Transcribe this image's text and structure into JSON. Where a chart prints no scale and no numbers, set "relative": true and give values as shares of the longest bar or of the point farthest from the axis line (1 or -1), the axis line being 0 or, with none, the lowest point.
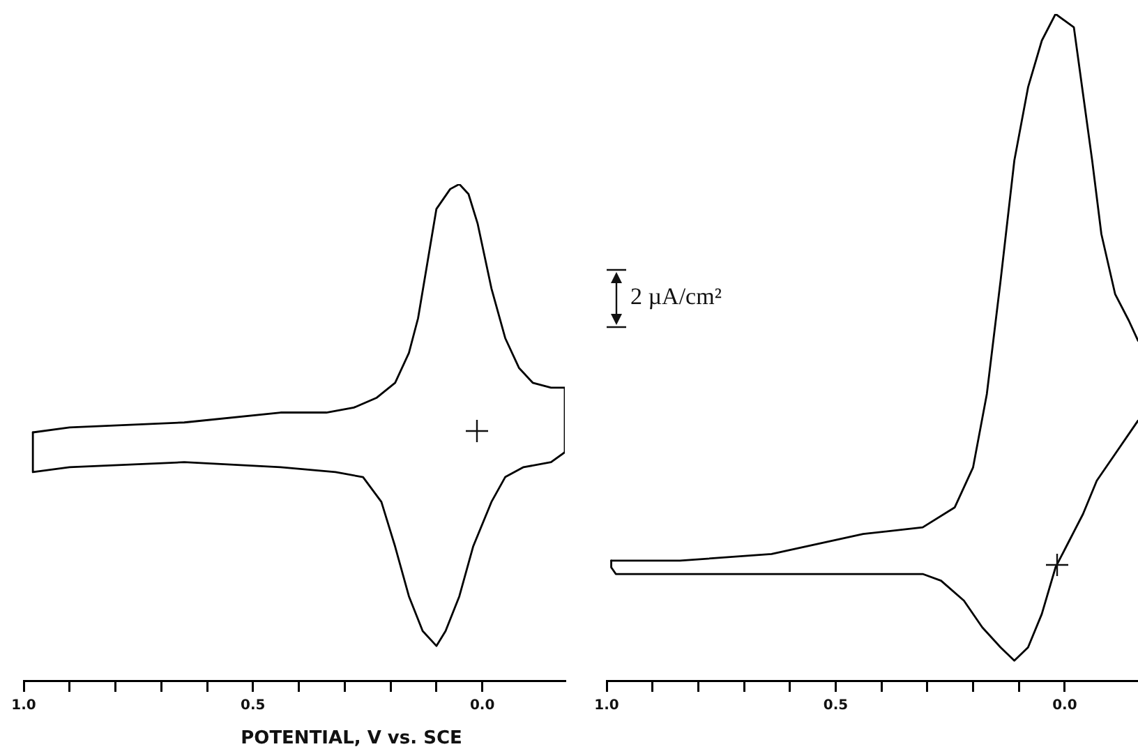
{
  "chart_data": [
    {
      "type": "line",
      "xlabel": "POTENTIAL, V vs. SCE",
      "relative": true,
      "xlim": [
        1.0,
        -0.18
      ],
      "xticks": [
        {
          "value": 1,
          "label": "1.0"
        },
        {
          "value": 0.9,
          "label": null
        },
        {
          "value": 0.8,
          "label": null
        },
        {
          "value": 0.7,
          "label": null
        },
        {
          "value": 0.6,
          "label": null
        },
        0.5,
        {
          "value": 0.4,
          "label": null
        },
        {
          "value": 0.3,
          "label": null
        },
        {
          "value": 0.2,
          "label": null
        },
        {
          "value": 0.1,
          "label": null
        },
        {
          "value": 0,
          "label": "0.0"
        }
      ],
      "series": [
        {
          "color": "#000000",
          "x": [
            0.98,
            0.9,
            0.65,
            0.44,
            0.34,
            0.28,
            0.23,
            0.19,
            0.16,
            0.14,
            0.12,
            0.1,
            0.07,
            0.05,
            0.03,
            0.01,
            -0.02,
            -0.05,
            -0.08,
            -0.11,
            -0.15,
            -0.18,
            -0.18
          ],
          "values": [
            0.5,
            0.51,
            0.52,
            0.54,
            0.54,
            0.55,
            0.57,
            0.6,
            0.66,
            0.73,
            0.84,
            0.95,
            0.99,
            1.0,
            0.98,
            0.92,
            0.79,
            0.69,
            0.63,
            0.6,
            0.59,
            0.59,
            0.46
          ]
        },
        {
          "color": "#000000",
          "x": [
            -0.18,
            -0.15,
            -0.09,
            -0.05,
            -0.02,
            0.02,
            0.05,
            0.08,
            0.1,
            0.13,
            0.16,
            0.19,
            0.22,
            0.26,
            0.32,
            0.44,
            0.65,
            0.9,
            0.98,
            0.98
          ],
          "values": [
            0.46,
            0.44,
            0.43,
            0.41,
            0.36,
            0.27,
            0.17,
            0.1,
            0.07,
            0.1,
            0.17,
            0.27,
            0.36,
            0.41,
            0.42,
            0.43,
            0.44,
            0.43,
            0.42,
            0.5
          ]
        }
      ],
      "grid": false,
      "legend": false,
      "tick_labels": "x",
      "marker": "none",
      "line_style": "solid"
    },
    {
      "type": "line",
      "relative": true,
      "xlim": [
        1.0,
        -0.16
      ],
      "xticks": [
        {
          "value": 1,
          "label": "1.0"
        },
        {
          "value": 0.9,
          "label": null
        },
        {
          "value": 0.8,
          "label": null
        },
        {
          "value": 0.7,
          "label": null
        },
        {
          "value": 0.6,
          "label": null
        },
        0.5,
        {
          "value": 0.4,
          "label": null
        },
        {
          "value": 0.3,
          "label": null
        },
        {
          "value": 0.2,
          "label": null
        },
        {
          "value": 0.1,
          "label": null
        },
        {
          "value": 0,
          "label": "0.0"
        }
      ],
      "annotations": [
        "2 µA/cm²"
      ],
      "series": [
        {
          "color": "#000000",
          "x": [
            0.99,
            0.84,
            0.64,
            0.44,
            0.31,
            0.24,
            0.2,
            0.17,
            0.14,
            0.11,
            0.08,
            0.05,
            0.02,
            -0.02,
            -0.04,
            -0.06,
            -0.08,
            -0.11,
            -0.14,
            -0.16
          ],
          "values": [
            0.18,
            0.18,
            0.19,
            0.22,
            0.23,
            0.26,
            0.32,
            0.43,
            0.6,
            0.78,
            0.89,
            0.96,
            1.0,
            0.98,
            0.88,
            0.78,
            0.67,
            0.58,
            0.54,
            0.51
          ]
        },
        {
          "color": "#000000",
          "x": [
            -0.16,
            -0.11,
            -0.07,
            -0.04,
            -0.01,
            0.02,
            0.05,
            0.08,
            0.11,
            0.14,
            0.18,
            0.22,
            0.27,
            0.31,
            0.5,
            0.8,
            0.98,
            0.99,
            0.99
          ],
          "values": [
            0.39,
            0.34,
            0.3,
            0.25,
            0.21,
            0.17,
            0.1,
            0.05,
            0.03,
            0.05,
            0.08,
            0.12,
            0.15,
            0.16,
            0.16,
            0.16,
            0.16,
            0.17,
            0.18
          ]
        }
      ],
      "grid": false,
      "legend": false,
      "tick_labels": "x",
      "marker": "none",
      "line_style": "solid"
    }
  ]
}
